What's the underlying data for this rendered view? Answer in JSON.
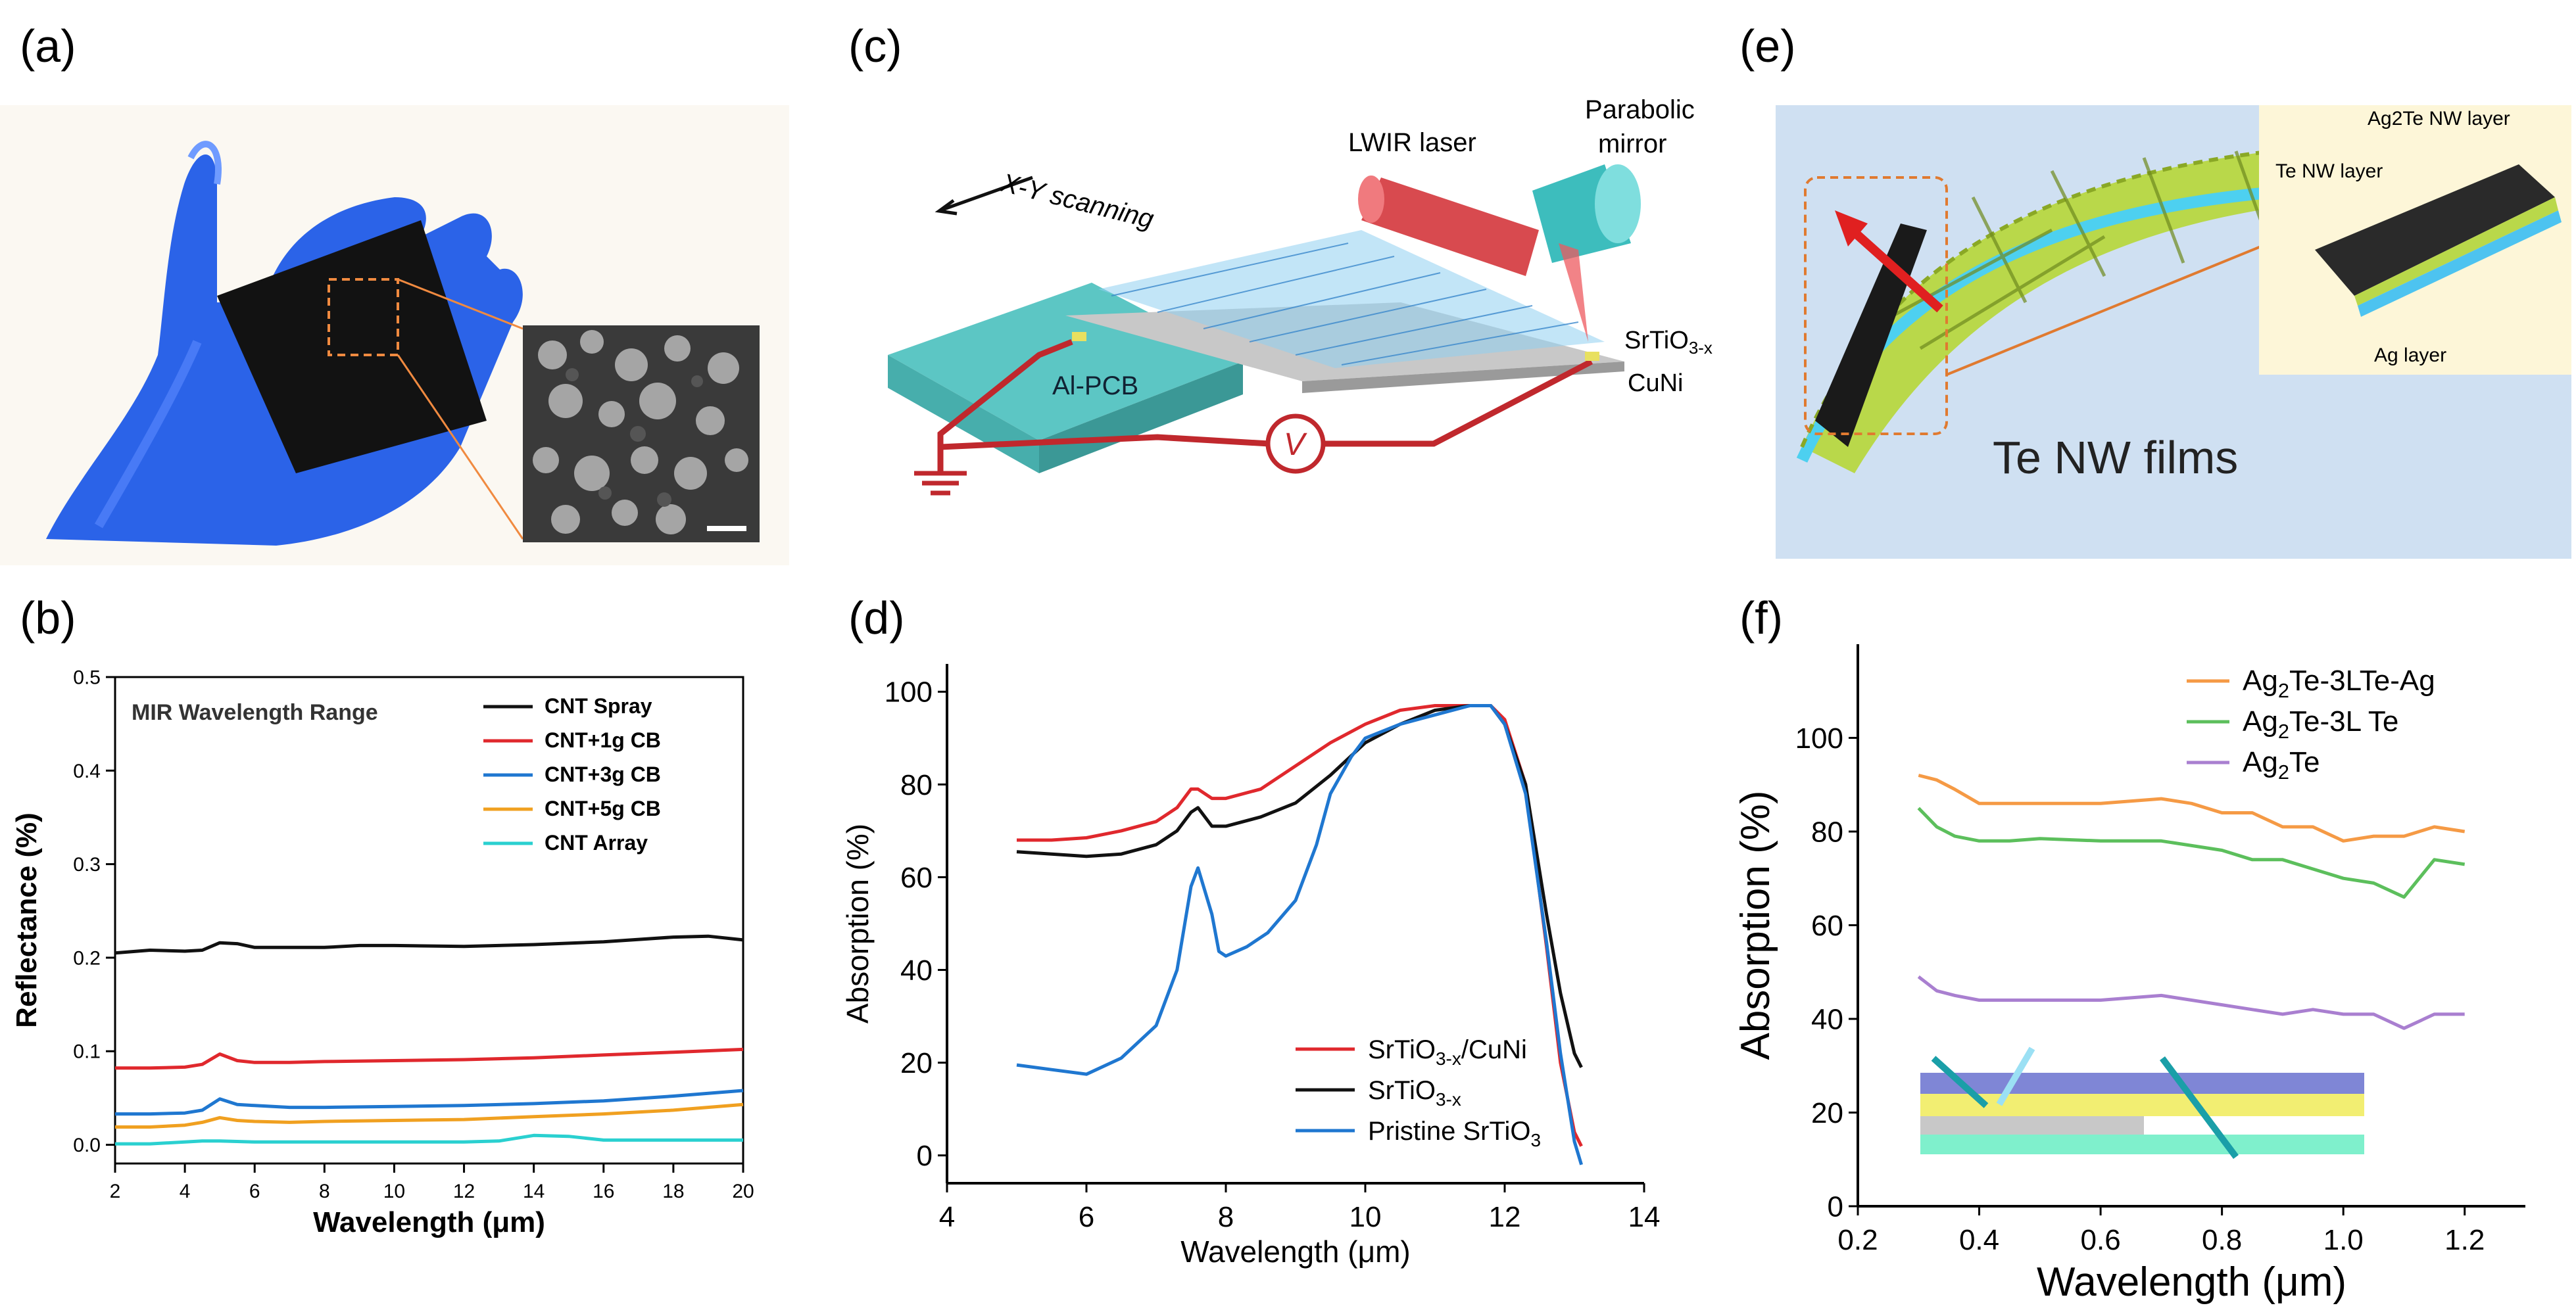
{
  "panels": {
    "a": "(a)",
    "b": "(b)",
    "c": "(c)",
    "d": "(d)",
    "e": "(e)",
    "f": "(f)"
  },
  "diagram_c": {
    "xy_scanning": "X-Y scanning",
    "lwir_laser": "LWIR laser",
    "parabolic": "Parabolic",
    "mirror": "mirror",
    "srtio_base": "SrTiO",
    "srtio_sub": "3-x",
    "cuni": "CuNi",
    "al_pcb": "Al-PCB",
    "voltmeter": "V"
  },
  "diagram_e": {
    "ag2te_layer": "Ag2Te NW layer",
    "te_layer": "Te NW layer",
    "ag_layer": "Ag layer",
    "te_nw_films": "Te NW films"
  },
  "colors": {
    "glove": "#2b63e8",
    "black": "#111111",
    "red": "#e0282d",
    "blue": "#1f77d0",
    "orange": "#f0a020",
    "cyan": "#2ad0d0",
    "green": "#5cbf5c",
    "purple": "#a97fd0",
    "f_orange": "#f59a45"
  },
  "chart_data": [
    {
      "id": "b",
      "type": "line",
      "title": "MIR Wavelength Range",
      "xlabel": "Wavelength (μm)",
      "ylabel": "Reflectance (%)",
      "xlim": [
        2,
        20
      ],
      "ylim": [
        -0.02,
        0.5
      ],
      "xticks": [
        "2",
        "4",
        "6",
        "8",
        "10",
        "12",
        "14",
        "16",
        "18",
        "20"
      ],
      "yticks": [
        "0.0",
        "0.1",
        "0.2",
        "0.3",
        "0.4",
        "0.5"
      ],
      "legend": "top-right",
      "series": [
        {
          "name": "CNT Spray",
          "color": "#111111",
          "x": [
            2,
            3,
            4,
            4.5,
            5,
            5.5,
            6,
            7,
            8,
            9,
            10,
            12,
            14,
            16,
            18,
            19,
            20
          ],
          "y": [
            0.205,
            0.208,
            0.207,
            0.208,
            0.216,
            0.215,
            0.211,
            0.211,
            0.211,
            0.213,
            0.213,
            0.212,
            0.214,
            0.217,
            0.222,
            0.223,
            0.219
          ]
        },
        {
          "name": "CNT+1g CB",
          "color": "#e0282d",
          "x": [
            2,
            3,
            4,
            4.5,
            5,
            5.5,
            6,
            7,
            8,
            10,
            12,
            14,
            16,
            18,
            20
          ],
          "y": [
            0.082,
            0.082,
            0.083,
            0.086,
            0.097,
            0.09,
            0.088,
            0.088,
            0.089,
            0.09,
            0.091,
            0.093,
            0.096,
            0.099,
            0.102
          ]
        },
        {
          "name": "CNT+3g CB",
          "color": "#1f77d0",
          "x": [
            2,
            3,
            4,
            4.5,
            5,
            5.5,
            6,
            7,
            8,
            10,
            12,
            14,
            16,
            18,
            20
          ],
          "y": [
            0.033,
            0.033,
            0.034,
            0.037,
            0.049,
            0.043,
            0.042,
            0.04,
            0.04,
            0.041,
            0.042,
            0.044,
            0.047,
            0.052,
            0.058
          ]
        },
        {
          "name": "CNT+5g CB",
          "color": "#f0a020",
          "x": [
            2,
            3,
            4,
            4.5,
            5,
            5.5,
            6,
            7,
            8,
            10,
            12,
            14,
            16,
            18,
            20
          ],
          "y": [
            0.019,
            0.019,
            0.021,
            0.024,
            0.029,
            0.026,
            0.025,
            0.024,
            0.025,
            0.026,
            0.027,
            0.03,
            0.033,
            0.037,
            0.043
          ]
        },
        {
          "name": "CNT Array",
          "color": "#2ad0d0",
          "x": [
            2,
            3,
            4,
            4.5,
            5,
            6,
            8,
            10,
            12,
            13,
            14,
            15,
            16,
            18,
            20
          ],
          "y": [
            0.001,
            0.001,
            0.003,
            0.004,
            0.004,
            0.003,
            0.003,
            0.003,
            0.003,
            0.004,
            0.01,
            0.009,
            0.005,
            0.005,
            0.005
          ]
        }
      ]
    },
    {
      "id": "d",
      "type": "line",
      "xlabel": "Wavelength (μm)",
      "ylabel": "Absorption (%)",
      "xlim": [
        4,
        14
      ],
      "ylim": [
        -6,
        106
      ],
      "xticks": [
        "4",
        "6",
        "8",
        "10",
        "12",
        "14"
      ],
      "yticks": [
        "0",
        "20",
        "40",
        "60",
        "80",
        "100"
      ],
      "legend": "bottom-right",
      "legend_labels": [
        {
          "base": "SrTiO",
          "sub": "3-x",
          "rest": "/CuNi"
        },
        {
          "base": "SrTiO",
          "sub": "3-x",
          "rest": ""
        },
        {
          "base": "Pristine SrTiO",
          "sub": "3",
          "rest": ""
        }
      ],
      "series": [
        {
          "name": "SrTiO3-x/CuNi",
          "color": "#e0282d",
          "x": [
            5,
            5.5,
            6,
            6.5,
            7,
            7.3,
            7.5,
            7.6,
            7.8,
            8,
            8.5,
            9,
            9.5,
            10,
            10.5,
            11,
            11.5,
            11.8,
            12,
            12.3,
            12.6,
            12.8,
            13.0,
            13.1
          ],
          "y": [
            68,
            68,
            68.5,
            70,
            72,
            75,
            79,
            79,
            77,
            77,
            79,
            84,
            89,
            93,
            96,
            97,
            97,
            97,
            94,
            80,
            45,
            20,
            5,
            2
          ]
        },
        {
          "name": "SrTiO3-x",
          "color": "#111111",
          "x": [
            5,
            5.5,
            6,
            6.5,
            7,
            7.3,
            7.5,
            7.6,
            7.8,
            8,
            8.5,
            9,
            9.5,
            10,
            10.5,
            11,
            11.5,
            11.8,
            12,
            12.3,
            12.6,
            12.8,
            13.0,
            13.1
          ],
          "y": [
            65.5,
            65,
            64.5,
            65,
            67,
            70,
            74,
            75,
            71,
            71,
            73,
            76,
            82,
            89,
            93,
            96,
            97,
            97,
            93,
            80,
            52,
            35,
            22,
            19
          ]
        },
        {
          "name": "Pristine SrTiO3",
          "color": "#1f77d0",
          "x": [
            5,
            5.5,
            6,
            6.5,
            7,
            7.3,
            7.5,
            7.6,
            7.8,
            7.9,
            8,
            8.3,
            8.6,
            9,
            9.3,
            9.5,
            9.8,
            10,
            10.5,
            11,
            11.5,
            11.8,
            12,
            12.3,
            12.6,
            12.8,
            13.0,
            13.1
          ],
          "y": [
            19.5,
            18.5,
            17.5,
            21,
            28,
            40,
            58,
            62,
            52,
            44,
            43,
            45,
            48,
            55,
            67,
            78,
            86,
            90,
            93,
            95,
            97,
            97,
            93,
            78,
            46,
            22,
            3,
            -2
          ]
        }
      ]
    },
    {
      "id": "f",
      "type": "line",
      "xlabel": "Wavelength (μm)",
      "ylabel": "Absorption (%)",
      "xlim": [
        0.2,
        1.3
      ],
      "ylim": [
        0,
        120
      ],
      "xticks": [
        "0.2",
        "0.4",
        "0.6",
        "0.8",
        "1.0",
        "1.2"
      ],
      "yticks": [
        "0",
        "20",
        "40",
        "60",
        "80",
        "100"
      ],
      "legend": "top-right",
      "legend_labels": [
        {
          "base": "Ag",
          "sub": "2",
          "rest": "Te-3LTe-Ag"
        },
        {
          "base": "Ag",
          "sub": "2",
          "rest": "Te-3L Te"
        },
        {
          "base": "Ag",
          "sub": "2",
          "rest": "Te"
        }
      ],
      "series": [
        {
          "name": "Ag2Te-3LTe-Ag",
          "color": "#f59a45",
          "x": [
            0.3,
            0.33,
            0.36,
            0.4,
            0.45,
            0.5,
            0.6,
            0.7,
            0.75,
            0.8,
            0.85,
            0.9,
            0.95,
            1.0,
            1.05,
            1.1,
            1.15,
            1.2
          ],
          "y": [
            92,
            91,
            89,
            86,
            86,
            86,
            86,
            87,
            86,
            84,
            84,
            81,
            81,
            78,
            79,
            79,
            81,
            80
          ]
        },
        {
          "name": "Ag2Te-3L Te",
          "color": "#5cbf5c",
          "x": [
            0.3,
            0.33,
            0.36,
            0.4,
            0.45,
            0.5,
            0.6,
            0.7,
            0.75,
            0.8,
            0.85,
            0.9,
            0.95,
            1.0,
            1.05,
            1.1,
            1.15,
            1.2
          ],
          "y": [
            85,
            81,
            79,
            78,
            78,
            78.5,
            78,
            78,
            77,
            76,
            74,
            74,
            72,
            70,
            69,
            66,
            74,
            73
          ]
        },
        {
          "name": "Ag2Te",
          "color": "#a97fd0",
          "x": [
            0.3,
            0.33,
            0.36,
            0.4,
            0.45,
            0.5,
            0.6,
            0.7,
            0.75,
            0.8,
            0.85,
            0.9,
            0.95,
            1.0,
            1.05,
            1.1,
            1.15,
            1.2
          ],
          "y": [
            49,
            46,
            45,
            44,
            44,
            44,
            44,
            45,
            44,
            43,
            42,
            41,
            42,
            41,
            41,
            38,
            41,
            41
          ]
        }
      ]
    }
  ]
}
